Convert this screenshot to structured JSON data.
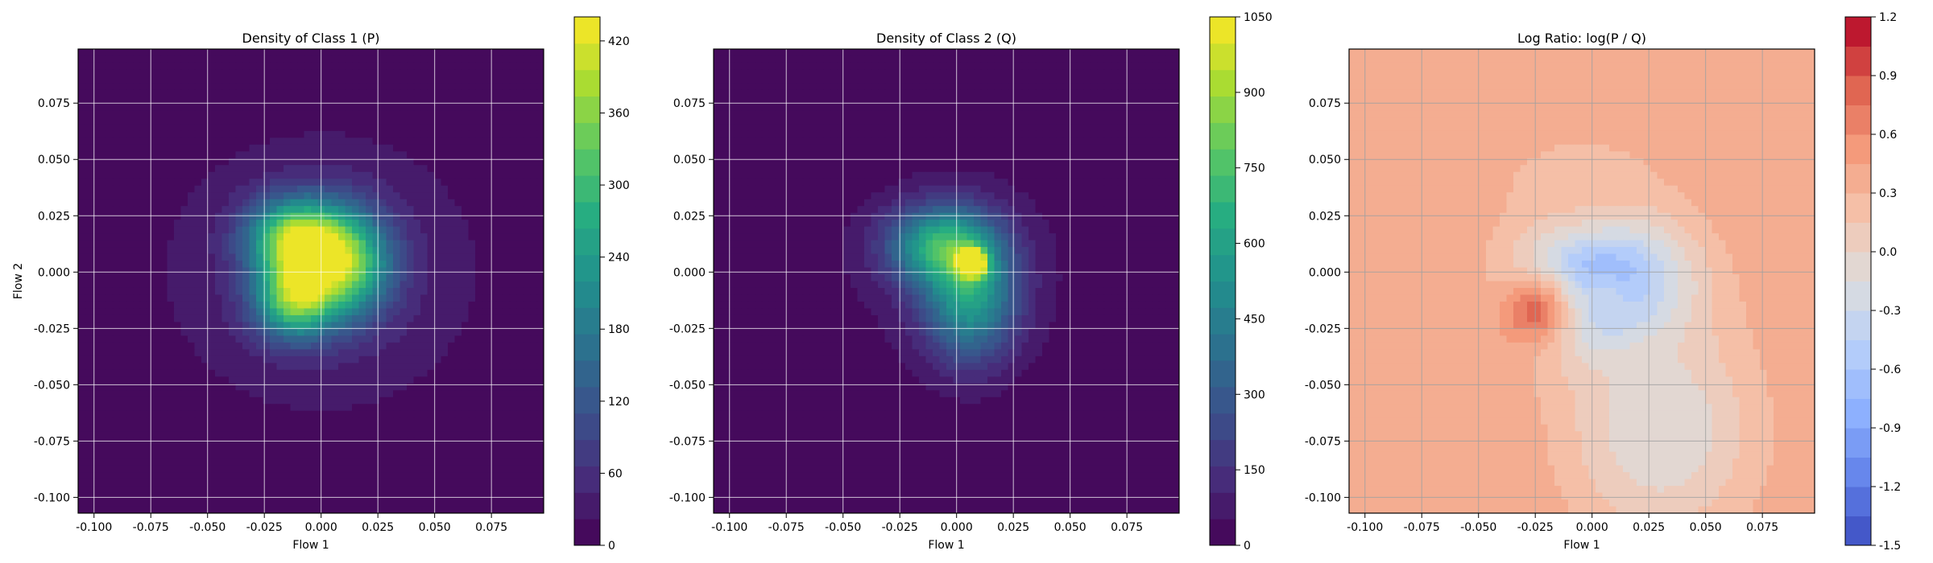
{
  "chart_data": [
    {
      "type": "heatmap",
      "title": "Density of Class 1 (P)",
      "xlabel": "Flow 1",
      "ylabel": "Flow 2",
      "xlim": [
        -0.107,
        0.098
      ],
      "ylim": [
        -0.107,
        0.099
      ],
      "xticks": [
        "-0.100",
        "-0.075",
        "-0.050",
        "-0.025",
        "0.000",
        "0.025",
        "0.050",
        "0.075"
      ],
      "yticks": [
        "-0.100",
        "-0.075",
        "-0.050",
        "-0.025",
        "0.000",
        "0.025",
        "0.050",
        "0.075"
      ],
      "grid": true,
      "colormap": "viridis",
      "colorbar": {
        "min": 0,
        "max": 440,
        "ticks": [
          "0",
          "60",
          "120",
          "180",
          "240",
          "300",
          "360",
          "420"
        ]
      },
      "blobs": [
        {
          "x": 0.0,
          "y": 0.0,
          "sx": 0.05,
          "sy": 0.045,
          "value": 55
        },
        {
          "x": -0.012,
          "y": 0.015,
          "sx": 0.014,
          "sy": 0.012,
          "value": 320
        },
        {
          "x": -0.012,
          "y": -0.012,
          "sx": 0.012,
          "sy": 0.012,
          "value": 290
        },
        {
          "x": 0.01,
          "y": 0.004,
          "sx": 0.014,
          "sy": 0.016,
          "value": 310
        }
      ]
    },
    {
      "type": "heatmap",
      "title": "Density of Class 2 (Q)",
      "xlabel": "Flow 1",
      "ylabel": "",
      "xlim": [
        -0.107,
        0.098
      ],
      "ylim": [
        -0.107,
        0.099
      ],
      "xticks": [
        "-0.100",
        "-0.075",
        "-0.050",
        "-0.025",
        "0.000",
        "0.025",
        "0.050",
        "0.075"
      ],
      "yticks": [
        "-0.100",
        "-0.075",
        "-0.050",
        "-0.025",
        "0.000",
        "0.025",
        "0.050",
        "0.075"
      ],
      "grid": true,
      "colormap": "viridis",
      "colorbar": {
        "min": 0,
        "max": 1050,
        "ticks": [
          "0",
          "150",
          "300",
          "450",
          "600",
          "750",
          "900",
          "1050"
        ]
      },
      "blobs": [
        {
          "x": 0.0,
          "y": 0.0,
          "sx": 0.04,
          "sy": 0.035,
          "value": 80
        },
        {
          "x": -0.008,
          "y": 0.012,
          "sx": 0.016,
          "sy": 0.012,
          "value": 520
        },
        {
          "x": 0.006,
          "y": -0.01,
          "sx": 0.014,
          "sy": 0.02,
          "value": 520
        },
        {
          "x": 0.007,
          "y": 0.004,
          "sx": 0.004,
          "sy": 0.004,
          "value": 1000
        }
      ]
    },
    {
      "type": "heatmap",
      "title": "Log Ratio: log(P / Q)",
      "xlabel": "Flow 1",
      "ylabel": "",
      "xlim": [
        -0.107,
        0.098
      ],
      "ylim": [
        -0.107,
        0.099
      ],
      "xticks": [
        "-0.100",
        "-0.075",
        "-0.050",
        "-0.025",
        "0.000",
        "0.025",
        "0.050",
        "0.075"
      ],
      "yticks": [
        "-0.100",
        "-0.075",
        "-0.050",
        "-0.025",
        "0.000",
        "0.025",
        "0.050",
        "0.075"
      ],
      "grid": true,
      "colormap": "coolwarm",
      "colorbar": {
        "min": -1.5,
        "max": 1.2,
        "ticks": [
          "-1.5",
          "-1.2",
          "-0.9",
          "-0.6",
          "-0.3",
          "0.0",
          "0.3",
          "0.6",
          "0.9",
          "1.2"
        ]
      },
      "base_value": 0.45,
      "blobs": [
        {
          "x": 0.005,
          "y": -0.005,
          "sx": 0.026,
          "sy": 0.022,
          "value": -0.95
        },
        {
          "x": 0.006,
          "y": -0.014,
          "sx": 0.012,
          "sy": 0.01,
          "value": -0.45
        },
        {
          "x": -0.025,
          "y": -0.018,
          "sx": 0.012,
          "sy": 0.012,
          "value": 0.85
        },
        {
          "x": -0.005,
          "y": 0.04,
          "sx": 0.025,
          "sy": 0.015,
          "value": 0.2
        },
        {
          "x": 0.03,
          "y": -0.07,
          "sx": 0.03,
          "sy": 0.035,
          "value": -0.15
        }
      ]
    }
  ]
}
